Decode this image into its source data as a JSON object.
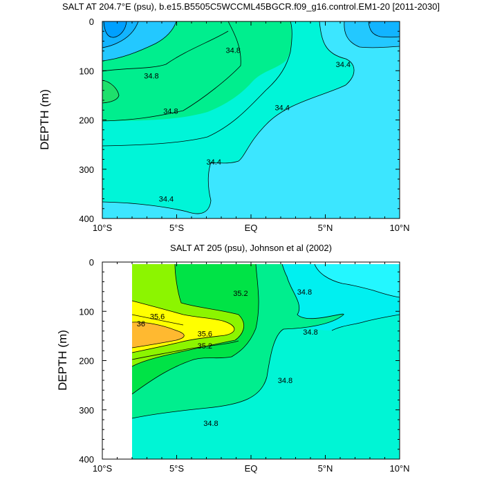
{
  "chart_data": [
    {
      "type": "contour",
      "title": "SALT AT 204.7°E (psu), b.e15.B5505C5WCCML45BGCR.f09_g16.control.EM1-20 [2011-2030]",
      "ylabel": "DEPTH (m)",
      "xlim": [
        -10,
        10
      ],
      "ylim": [
        0,
        400
      ],
      "y_inverted": true,
      "x_ticks": [
        "10°S",
        "5°S",
        "EQ",
        "5°N",
        "10°N"
      ],
      "x_tick_values": [
        -10,
        -5,
        0,
        5,
        10
      ],
      "y_ticks": [
        "0",
        "100",
        "200",
        "300",
        "400"
      ],
      "y_tick_values": [
        0,
        100,
        200,
        300,
        400
      ],
      "contour_labels": [
        {
          "text": "34.8",
          "x": -6.7,
          "y": 110
        },
        {
          "text": "34.8",
          "x": -5.4,
          "y": 182
        },
        {
          "text": "34.8",
          "x": -1.2,
          "y": 58
        },
        {
          "text": "34.4",
          "x": 6.2,
          "y": 87
        },
        {
          "text": "34.4",
          "x": 2.1,
          "y": 175
        },
        {
          "text": "34.4",
          "x": -2.5,
          "y": 285
        },
        {
          "text": "34.4",
          "x": -5.7,
          "y": 360
        }
      ],
      "colors": {
        "low_blue": "#12b4ff",
        "mid_blue": "#23c8ff",
        "cyan": "#3ce6ff",
        "aqua": "#00f5d8",
        "green_light": "#00ee8e",
        "green": "#1ee06c"
      }
    },
    {
      "type": "contour",
      "title": "SALT AT 205 (psu), Johnson et al (2002)",
      "ylabel": "DEPTH (m)",
      "xlim": [
        -10,
        10
      ],
      "ylim": [
        0,
        400
      ],
      "y_inverted": true,
      "x_ticks": [
        "10°S",
        "5°S",
        "EQ",
        "5°N",
        "10°N"
      ],
      "x_tick_values": [
        -10,
        -5,
        0,
        5,
        10
      ],
      "y_ticks": [
        "0",
        "100",
        "200",
        "300",
        "400"
      ],
      "y_tick_values": [
        0,
        100,
        200,
        300,
        400
      ],
      "missing_region": {
        "x": [
          -10,
          -8
        ],
        "y": [
          0,
          400
        ]
      },
      "contour_labels": [
        {
          "text": "35.2",
          "x": -0.7,
          "y": 63
        },
        {
          "text": "34.8",
          "x": 3.6,
          "y": 60
        },
        {
          "text": "35.6",
          "x": -6.3,
          "y": 110
        },
        {
          "text": "36",
          "x": -7.4,
          "y": 125
        },
        {
          "text": "35.6",
          "x": -3.1,
          "y": 145
        },
        {
          "text": "35.2",
          "x": -3.1,
          "y": 170
        },
        {
          "text": "34.8",
          "x": 4.0,
          "y": 142
        },
        {
          "text": "34.8",
          "x": 2.3,
          "y": 240
        },
        {
          "text": "34.8",
          "x": -2.7,
          "y": 327
        }
      ],
      "colors": {
        "cyan": "#00f0f0",
        "aqua": "#00f5d5",
        "green_light": "#00ee8e",
        "green": "#00e346",
        "lime": "#8cf500",
        "yellow": "#ffff00",
        "orange": "#ffb930"
      }
    }
  ]
}
